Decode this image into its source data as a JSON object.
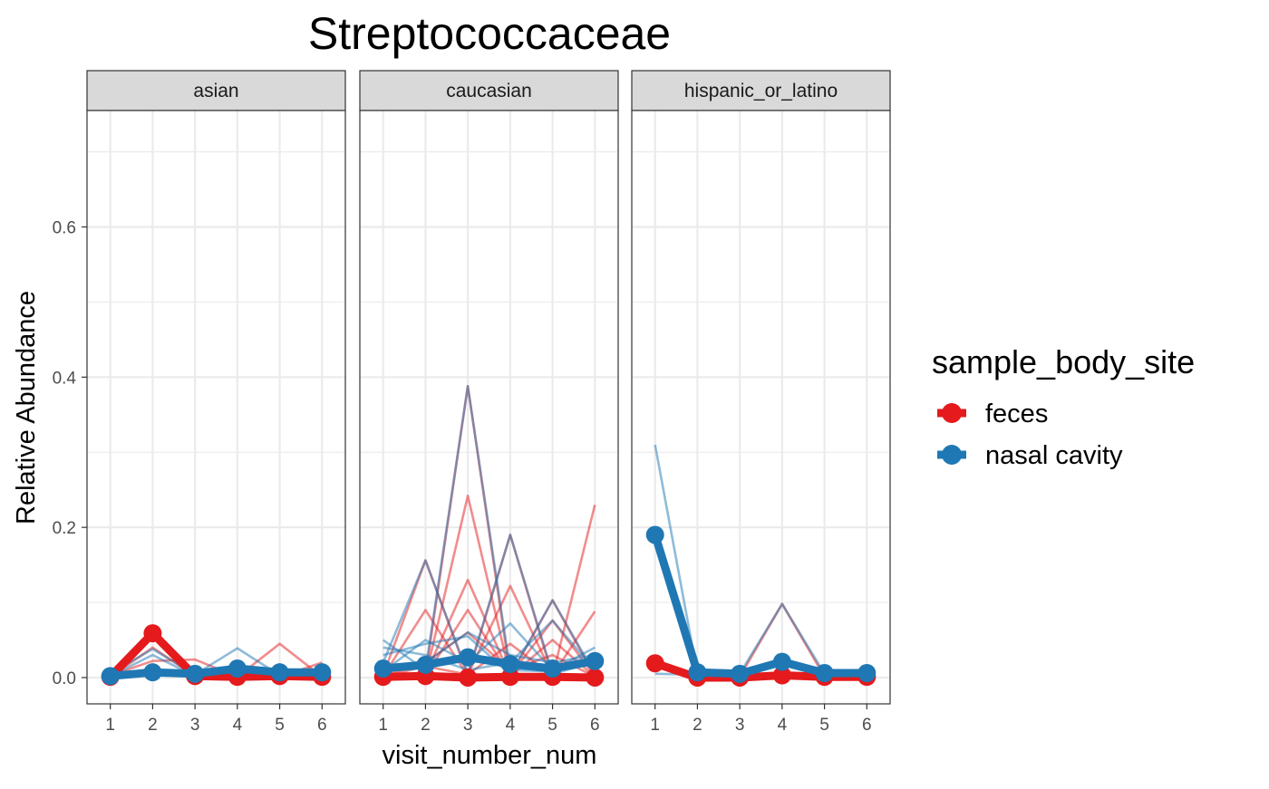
{
  "chart_data": {
    "type": "line",
    "title": "Streptococcaceae",
    "xlabel": "visit_number_num",
    "ylabel": "Relative Abundance",
    "facets": [
      "asian",
      "caucasian",
      "hispanic_or_latino"
    ],
    "x": [
      1,
      2,
      3,
      4,
      5,
      6
    ],
    "xticks": [
      "1",
      "2",
      "3",
      "4",
      "5",
      "6"
    ],
    "xlim": [
      0.45,
      6.55
    ],
    "yticks": [
      0.0,
      0.2,
      0.4,
      0.6
    ],
    "ytick_labels": [
      "0.0",
      "0.2",
      "0.4",
      "0.6"
    ],
    "ylim": [
      -0.035,
      0.755
    ],
    "grid": true,
    "legend": {
      "title": "sample_body_site",
      "placement": "right",
      "entries": [
        "feces",
        "nasal cavity"
      ]
    },
    "colors": {
      "feces": "#E41A1C",
      "nasal cavity": "#1F78B4"
    },
    "panels": [
      {
        "facet": "asian",
        "means": [
          {
            "name": "feces",
            "values": [
              0.001,
              0.059,
              0.002,
              0.001,
              0.002,
              0.001
            ]
          },
          {
            "name": "nasal cavity",
            "values": [
              0.002,
              0.007,
              0.005,
              0.012,
              0.007,
              0.007
            ]
          }
        ],
        "individual": [
          {
            "site": "feces",
            "values": [
              0.003,
              0.022,
              0.024,
              0.001,
              0.002,
              0.001
            ]
          },
          {
            "site": "feces",
            "values": [
              0.001,
              0.04,
              0.002,
              0.001,
              0.001,
              0.02
            ]
          },
          {
            "site": "feces",
            "values": [
              0.002,
              0.012,
              0.001,
              0.001,
              0.045,
              0.001
            ]
          },
          {
            "site": "nasal cavity",
            "values": [
              0.005,
              0.038,
              0.004,
              0.039,
              0.003,
              0.004
            ]
          },
          {
            "site": "nasal cavity",
            "values": [
              0.002,
              0.03,
              0.002,
              0.01,
              0.004,
              0.005
            ]
          }
        ]
      },
      {
        "facet": "caucasian",
        "means": [
          {
            "name": "feces",
            "values": [
              0.001,
              0.002,
              0.0,
              0.001,
              0.001,
              0.0
            ]
          },
          {
            "name": "nasal cavity",
            "values": [
              0.012,
              0.017,
              0.027,
              0.018,
              0.012,
              0.022
            ]
          }
        ],
        "individual": [
          {
            "site": "feces",
            "values": [
              0.002,
              0.09,
              0.002,
              0.001,
              0.001,
              0.001
            ]
          },
          {
            "site": "feces",
            "values": [
              0.001,
              0.003,
              0.388,
              0.002,
              0.002,
              0.001
            ]
          },
          {
            "site": "feces",
            "values": [
              0.003,
              0.156,
              0.003,
              0.19,
              0.002,
              0.001
            ]
          },
          {
            "site": "feces",
            "values": [
              0.002,
              0.001,
              0.242,
              0.002,
              0.103,
              0.002
            ]
          },
          {
            "site": "feces",
            "values": [
              0.001,
              0.004,
              0.13,
              0.002,
              0.05,
              0.001
            ]
          },
          {
            "site": "feces",
            "values": [
              0.001,
              0.002,
              0.004,
              0.122,
              0.003,
              0.088
            ]
          },
          {
            "site": "feces",
            "values": [
              0.002,
              0.005,
              0.002,
              0.002,
              0.002,
              0.23
            ]
          },
          {
            "site": "feces",
            "values": [
              0.001,
              0.015,
              0.004,
              0.045,
              0.002,
              0.001
            ]
          },
          {
            "site": "feces",
            "values": [
              0.002,
              0.02,
              0.06,
              0.01,
              0.03,
              0.001
            ]
          },
          {
            "site": "feces",
            "values": [
              0.001,
              0.002,
              0.09,
              0.003,
              0.076,
              0.002
            ]
          },
          {
            "site": "nasal cavity",
            "values": [
              0.05,
              0.01,
              0.388,
              0.01,
              0.008,
              0.025
            ]
          },
          {
            "site": "nasal cavity",
            "values": [
              0.02,
              0.156,
              0.005,
              0.19,
              0.005,
              0.02
            ]
          },
          {
            "site": "nasal cavity",
            "values": [
              0.03,
              0.045,
              0.055,
              0.004,
              0.103,
              0.005
            ]
          },
          {
            "site": "nasal cavity",
            "values": [
              0.008,
              0.05,
              0.02,
              0.072,
              0.01,
              0.04
            ]
          },
          {
            "site": "nasal cavity",
            "values": [
              0.04,
              0.03,
              0.01,
              0.02,
              0.076,
              0.01
            ]
          },
          {
            "site": "nasal cavity",
            "values": [
              0.01,
              0.02,
              0.06,
              0.03,
              0.02,
              0.03
            ]
          }
        ]
      },
      {
        "facet": "hispanic_or_latino",
        "means": [
          {
            "name": "feces",
            "values": [
              0.019,
              0.0,
              0.0,
              0.003,
              0.001,
              0.001
            ]
          },
          {
            "name": "nasal cavity",
            "values": [
              0.19,
              0.007,
              0.005,
              0.021,
              0.006,
              0.006
            ]
          }
        ],
        "individual": [
          {
            "site": "feces",
            "values": [
              0.02,
              0.001,
              0.001,
              0.098,
              0.001,
              0.001
            ]
          },
          {
            "site": "feces",
            "values": [
              0.018,
              0.001,
              0.001,
              0.001,
              0.001,
              0.001
            ]
          },
          {
            "site": "nasal cavity",
            "values": [
              0.31,
              0.005,
              0.005,
              0.098,
              0.005,
              0.005
            ]
          },
          {
            "site": "nasal cavity",
            "values": [
              0.005,
              0.004,
              0.004,
              0.002,
              0.003,
              0.004
            ]
          }
        ]
      }
    ]
  }
}
